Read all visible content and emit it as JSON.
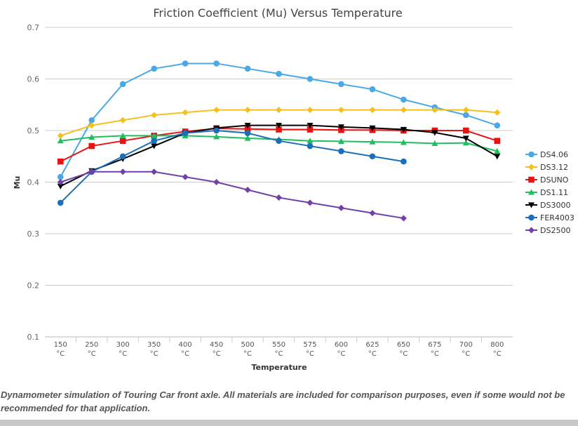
{
  "chart_data": {
    "type": "line",
    "title": "Friction Coefficient (Mu) Versus Temperature",
    "xlabel": "Temperature",
    "ylabel": "Mu",
    "categories": [
      "150 °C",
      "250 °C",
      "300 °C",
      "350 °C",
      "400 °C",
      "450 °C",
      "500 °C",
      "550 °C",
      "575 °C",
      "600 °C",
      "625 °C",
      "650 °C",
      "675 °C",
      "700 °C",
      "800 °C"
    ],
    "ylim": [
      0.1,
      0.7
    ],
    "yticks": [
      "0.1",
      "0.2",
      "0.3",
      "0.4",
      "0.5",
      "0.6",
      "0.7"
    ],
    "grid": true,
    "legend": "right",
    "series": [
      {
        "name": "DS4.06",
        "color": "#4aa8e6",
        "marker": "circle",
        "values": [
          0.41,
          0.52,
          0.59,
          0.62,
          0.63,
          0.63,
          0.62,
          0.61,
          0.6,
          0.59,
          0.58,
          0.56,
          0.545,
          0.53,
          0.51
        ]
      },
      {
        "name": "DS3.12",
        "color": "#f5c01a",
        "marker": "diamond",
        "values": [
          0.49,
          0.51,
          0.52,
          0.53,
          0.535,
          0.54,
          0.54,
          0.54,
          0.54,
          0.54,
          0.54,
          0.54,
          0.54,
          0.54,
          0.535
        ]
      },
      {
        "name": "DSUNO",
        "color": "#e81414",
        "marker": "square",
        "values": [
          0.44,
          0.47,
          0.48,
          0.49,
          0.498,
          0.504,
          0.503,
          0.502,
          0.502,
          0.501,
          0.501,
          0.5,
          0.5,
          0.5,
          0.48
        ]
      },
      {
        "name": "DS1.11",
        "color": "#1fbf5f",
        "marker": "triangle",
        "values": [
          0.48,
          0.487,
          0.49,
          0.49,
          0.49,
          0.488,
          0.485,
          0.483,
          0.48,
          0.479,
          0.478,
          0.477,
          0.475,
          0.476,
          0.46
        ]
      },
      {
        "name": "DS3000",
        "color": "#000000",
        "marker": "triangle-down",
        "values": [
          0.392,
          0.422,
          0.445,
          0.47,
          0.495,
          0.505,
          0.51,
          0.51,
          0.51,
          0.507,
          0.505,
          0.502,
          0.496,
          0.485,
          0.45
        ]
      },
      {
        "name": "FER4003",
        "color": "#1a6fb8",
        "marker": "circle",
        "values": [
          0.36,
          0.42,
          0.45,
          0.48,
          0.495,
          0.5,
          0.495,
          0.48,
          0.47,
          0.46,
          0.45,
          0.44,
          null,
          null,
          null
        ]
      },
      {
        "name": "DS2500",
        "color": "#7140a8",
        "marker": "diamond",
        "values": [
          0.4,
          0.42,
          0.42,
          0.42,
          0.41,
          0.4,
          0.385,
          0.37,
          0.36,
          0.35,
          0.34,
          0.33,
          null,
          null,
          null
        ]
      }
    ]
  },
  "caption": "Dynamometer simulation of Touring Car front axle. All materials are included for comparison purposes, even if some would not be recommended for that application."
}
